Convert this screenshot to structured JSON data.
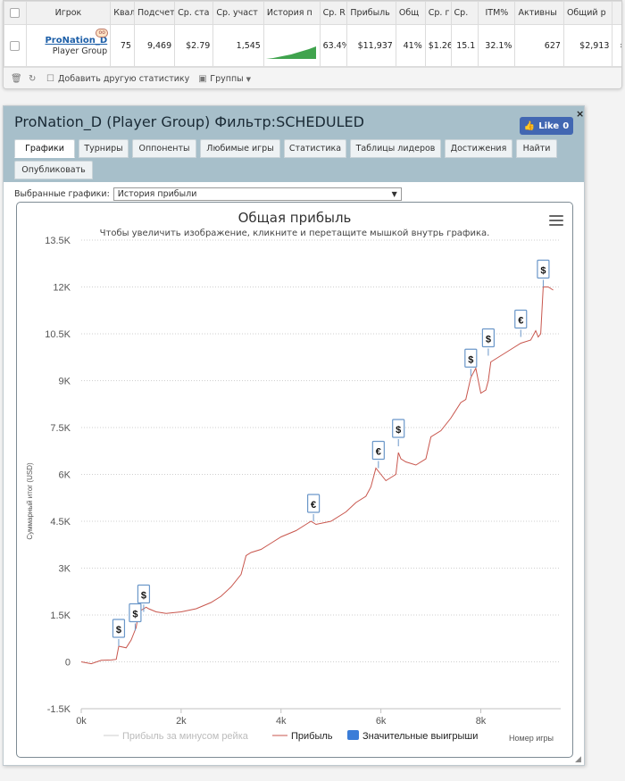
{
  "table": {
    "headers": [
      "",
      "Игрок",
      "Квал",
      "Подсчет",
      "Ср. ста",
      "Ср. участ",
      "История п",
      "Ср. R",
      "Прибыль",
      "Общ",
      "Ср. г",
      "Ср.",
      "ITM%",
      "Активны",
      "Общий р",
      ""
    ],
    "row": {
      "player_name": "ProNation_D",
      "player_sub": "Player Group",
      "cells": [
        "75",
        "9,469",
        "$2.79",
        "1,545",
        "",
        "63.4%",
        "$11,937",
        "41%",
        "$1.26",
        "15.1",
        "32.1%",
        "627",
        "$2,913",
        "»"
      ]
    }
  },
  "toolbar": {
    "add_stat": "Добавить другую статистику",
    "groups": "Группы"
  },
  "dialog": {
    "title": "ProNation_D (Player Group) Фильтр:SCHEDULED",
    "like_label": "Like",
    "like_count": "0",
    "close": "×",
    "tabs": [
      "Графики",
      "Турниры",
      "Оппоненты",
      "Любимые игры",
      "Статистика",
      "Таблицы лидеров",
      "Достижения",
      "Найти",
      "Опубликовать"
    ],
    "active_tab": 0,
    "select_label": "Выбранные графики:",
    "select_value": "История прибыли"
  },
  "colors": {
    "profit_line": "#c8564d",
    "rake_line": "#cccccc",
    "big_win": "#3b7dd8",
    "header_bg": "#a7bfca"
  },
  "chart_data": {
    "type": "line",
    "title": "Общая прибыль",
    "subtitle": "Чтобы увеличить изображение, кликните и перетащите мышкой внутрь графика.",
    "xlabel": "Номер игры",
    "ylabel": "Суммарный итог (USD)",
    "xlim": [
      0,
      9600
    ],
    "ylim": [
      -1500,
      13500
    ],
    "x_ticks": [
      0,
      2000,
      4000,
      6000,
      8000
    ],
    "x_tick_labels": [
      "0k",
      "2k",
      "4k",
      "6k",
      "8k"
    ],
    "y_ticks": [
      -1500,
      0,
      1500,
      3000,
      4500,
      6000,
      7500,
      9000,
      10500,
      12000,
      13500
    ],
    "y_tick_labels": [
      "-1.5K",
      "0",
      "1.5K",
      "3K",
      "4.5K",
      "6K",
      "7.5K",
      "9K",
      "10.5K",
      "12K",
      "13.5K"
    ],
    "grid": "horizontal",
    "legend": [
      "Прибыль за минусом рейка",
      "Прибыль",
      "Значительные выигрыши"
    ],
    "series": [
      {
        "name": "Прибыль",
        "x": [
          0,
          200,
          400,
          600,
          700,
          750,
          900,
          1000,
          1050,
          1100,
          1150,
          1250,
          1300,
          1350,
          1500,
          1700,
          2000,
          2300,
          2600,
          2800,
          3000,
          3200,
          3300,
          3400,
          3600,
          3800,
          4000,
          4300,
          4500,
          4600,
          4700,
          5000,
          5300,
          5500,
          5700,
          5800,
          5900,
          6000,
          6100,
          6200,
          6300,
          6350,
          6400,
          6500,
          6700,
          6900,
          7000,
          7200,
          7400,
          7600,
          7700,
          7800,
          7900,
          8000,
          8100,
          8150,
          8200,
          8400,
          8600,
          8800,
          9000,
          9100,
          9150,
          9200,
          9250,
          9350,
          9450
        ],
        "y": [
          0,
          -60,
          50,
          60,
          80,
          500,
          450,
          700,
          900,
          1100,
          1600,
          1700,
          1750,
          1700,
          1600,
          1550,
          1600,
          1700,
          1900,
          2100,
          2400,
          2800,
          3400,
          3500,
          3600,
          3800,
          4000,
          4200,
          4400,
          4500,
          4400,
          4500,
          4800,
          5100,
          5300,
          5600,
          6200,
          6000,
          5800,
          5900,
          6000,
          6700,
          6500,
          6400,
          6300,
          6500,
          7200,
          7400,
          7800,
          8300,
          8400,
          9100,
          9400,
          8600,
          8700,
          9000,
          9600,
          9800,
          10000,
          10200,
          10300,
          10600,
          10400,
          10500,
          12000,
          12000,
          11900
        ]
      },
      {
        "name": "Прибыль за минусом рейка",
        "x": [],
        "y": []
      }
    ],
    "markers": [
      {
        "symbol": "$",
        "x": 750,
        "y": 500
      },
      {
        "symbol": "$",
        "x": 1080,
        "y": 1000
      },
      {
        "symbol": "$",
        "x": 1250,
        "y": 1600
      },
      {
        "symbol": "€",
        "x": 4650,
        "y": 4500
      },
      {
        "symbol": "€",
        "x": 5950,
        "y": 6200
      },
      {
        "symbol": "$",
        "x": 6350,
        "y": 6900
      },
      {
        "symbol": "$",
        "x": 7800,
        "y": 9150
      },
      {
        "symbol": "$",
        "x": 8150,
        "y": 9800
      },
      {
        "symbol": "€",
        "x": 8800,
        "y": 10400
      },
      {
        "symbol": "$",
        "x": 9250,
        "y": 12000
      }
    ]
  }
}
